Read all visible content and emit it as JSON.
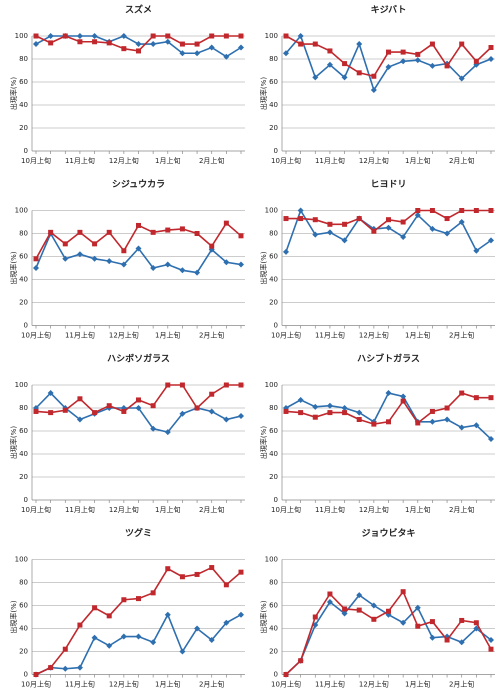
{
  "chart_data": [
    {
      "type": "line",
      "title": "スズメ",
      "ylabel": "出現率(%)",
      "categories": [
        "10月上旬",
        null,
        null,
        "11月上旬",
        null,
        null,
        "12月上旬",
        null,
        null,
        "1月上旬",
        null,
        null,
        "2月上旬",
        null,
        null
      ],
      "ylim": [
        0,
        100
      ],
      "yticks": [
        0,
        20,
        40,
        60,
        80,
        100
      ],
      "grid": true,
      "series": [
        {
          "color": "#2e6fb0",
          "marker": "diamond",
          "values": [
            93,
            100,
            100,
            100,
            100,
            95,
            100,
            93,
            93,
            95,
            85,
            85,
            90,
            82,
            90
          ]
        },
        {
          "color": "#c0282d",
          "marker": "square",
          "values": [
            100,
            94,
            100,
            95,
            95,
            94,
            89,
            87,
            100,
            100,
            93,
            93,
            100,
            100,
            100
          ]
        }
      ]
    },
    {
      "type": "line",
      "title": "キジバト",
      "ylabel": "出現率(%)",
      "categories": [
        "10月上旬",
        null,
        null,
        "11月上旬",
        null,
        null,
        "12月上旬",
        null,
        null,
        "1月上旬",
        null,
        null,
        "2月上旬",
        null,
        null
      ],
      "ylim": [
        0,
        100
      ],
      "yticks": [
        0,
        20,
        40,
        60,
        80,
        100
      ],
      "grid": true,
      "series": [
        {
          "color": "#2e6fb0",
          "marker": "diamond",
          "values": [
            85,
            100,
            64,
            75,
            64,
            93,
            53,
            73,
            78,
            79,
            74,
            76,
            63,
            75,
            80
          ]
        },
        {
          "color": "#c0282d",
          "marker": "square",
          "values": [
            100,
            93,
            93,
            87,
            76,
            68,
            65,
            86,
            86,
            84,
            93,
            74,
            93,
            78,
            90
          ]
        }
      ]
    },
    {
      "type": "line",
      "title": "シジュウカラ",
      "ylabel": "出現率(%)",
      "categories": [
        "10月上旬",
        null,
        null,
        "11月上旬",
        null,
        null,
        "12月上旬",
        null,
        null,
        "1月上旬",
        null,
        null,
        "2月上旬",
        null,
        null
      ],
      "ylim": [
        0,
        100
      ],
      "yticks": [
        0,
        20,
        40,
        60,
        80,
        100
      ],
      "grid": true,
      "series": [
        {
          "color": "#2e6fb0",
          "marker": "diamond",
          "values": [
            50,
            80,
            58,
            62,
            58,
            56,
            53,
            67,
            50,
            53,
            48,
            46,
            66,
            55,
            53
          ]
        },
        {
          "color": "#c0282d",
          "marker": "square",
          "values": [
            58,
            81,
            71,
            81,
            71,
            81,
            65,
            87,
            81,
            83,
            84,
            80,
            69,
            89,
            78
          ]
        }
      ]
    },
    {
      "type": "line",
      "title": "ヒヨドリ",
      "ylabel": "出現率(%)",
      "categories": [
        "10月上旬",
        null,
        null,
        "11月上旬",
        null,
        null,
        "12月上旬",
        null,
        null,
        "1月上旬",
        null,
        null,
        "2月上旬",
        null,
        null
      ],
      "ylim": [
        0,
        100
      ],
      "yticks": [
        0,
        20,
        40,
        60,
        80,
        100
      ],
      "grid": true,
      "series": [
        {
          "color": "#2e6fb0",
          "marker": "diamond",
          "values": [
            64,
            100,
            79,
            81,
            74,
            93,
            84,
            85,
            77,
            96,
            84,
            80,
            90,
            65,
            74
          ]
        },
        {
          "color": "#c0282d",
          "marker": "square",
          "values": [
            93,
            93,
            92,
            88,
            88,
            93,
            82,
            92,
            90,
            100,
            100,
            93,
            100,
            100,
            100
          ]
        }
      ]
    },
    {
      "type": "line",
      "title": "ハシボソガラス",
      "ylabel": "出現率(%)",
      "categories": [
        "10月上旬",
        null,
        null,
        "11月上旬",
        null,
        null,
        "12月上旬",
        null,
        null,
        "1月上旬",
        null,
        null,
        "2月上旬",
        null,
        null
      ],
      "ylim": [
        0,
        100
      ],
      "yticks": [
        0,
        20,
        40,
        60,
        80,
        100
      ],
      "grid": true,
      "series": [
        {
          "color": "#2e6fb0",
          "marker": "diamond",
          "values": [
            80,
            93,
            80,
            70,
            75,
            80,
            80,
            80,
            62,
            59,
            75,
            80,
            77,
            70,
            73
          ]
        },
        {
          "color": "#c0282d",
          "marker": "square",
          "values": [
            77,
            76,
            78,
            88,
            76,
            82,
            77,
            87,
            82,
            100,
            100,
            80,
            92,
            100,
            100
          ]
        }
      ]
    },
    {
      "type": "line",
      "title": "ハシブトガラス",
      "ylabel": "出現率(%)",
      "categories": [
        "10月上旬",
        null,
        null,
        "11月上旬",
        null,
        null,
        "12月上旬",
        null,
        null,
        "1月上旬",
        null,
        null,
        "2月上旬",
        null,
        null
      ],
      "ylim": [
        0,
        100
      ],
      "yticks": [
        0,
        20,
        40,
        60,
        80,
        100
      ],
      "grid": true,
      "series": [
        {
          "color": "#2e6fb0",
          "marker": "diamond",
          "values": [
            80,
            87,
            81,
            82,
            80,
            76,
            68,
            93,
            90,
            68,
            68,
            70,
            63,
            65,
            53
          ]
        },
        {
          "color": "#c0282d",
          "marker": "square",
          "values": [
            77,
            76,
            72,
            76,
            76,
            70,
            66,
            68,
            86,
            67,
            77,
            80,
            93,
            89,
            89
          ]
        }
      ]
    },
    {
      "type": "line",
      "title": "ツグミ",
      "ylabel": "出現率(%)",
      "categories": [
        "10月上旬",
        null,
        null,
        "11月上旬",
        null,
        null,
        "12月上旬",
        null,
        null,
        "1月上旬",
        null,
        null,
        "2月上旬",
        null,
        null
      ],
      "ylim": [
        0,
        100
      ],
      "yticks": [
        0,
        20,
        40,
        60,
        80,
        100
      ],
      "grid": true,
      "series": [
        {
          "color": "#2e6fb0",
          "marker": "diamond",
          "values": [
            0,
            6,
            5,
            6,
            32,
            25,
            33,
            33,
            28,
            52,
            20,
            40,
            30,
            45,
            52
          ]
        },
        {
          "color": "#c0282d",
          "marker": "square",
          "values": [
            0,
            6,
            22,
            43,
            58,
            51,
            65,
            66,
            71,
            92,
            85,
            87,
            93,
            78,
            89
          ]
        }
      ]
    },
    {
      "type": "line",
      "title": "ジョウビタキ",
      "ylabel": "出現率(%)",
      "categories": [
        "10月上旬",
        null,
        null,
        "11月上旬",
        null,
        null,
        "12月上旬",
        null,
        null,
        "1月上旬",
        null,
        null,
        "2月上旬",
        null,
        null
      ],
      "ylim": [
        0,
        100
      ],
      "yticks": [
        0,
        20,
        40,
        60,
        80,
        100
      ],
      "grid": true,
      "series": [
        {
          "color": "#2e6fb0",
          "marker": "diamond",
          "values": [
            0,
            12,
            43,
            63,
            53,
            69,
            60,
            52,
            45,
            58,
            32,
            33,
            28,
            40,
            30
          ]
        },
        {
          "color": "#c0282d",
          "marker": "square",
          "values": [
            0,
            12,
            50,
            70,
            57,
            56,
            48,
            55,
            72,
            42,
            46,
            30,
            47,
            45,
            22
          ]
        }
      ]
    }
  ]
}
